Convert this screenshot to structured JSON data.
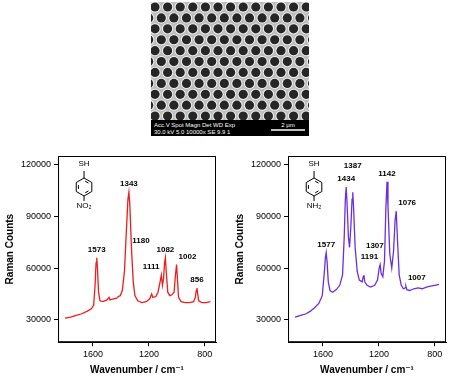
{
  "image": {
    "info_header": "Acc.V Spot Magn Det WD Exp",
    "info_values": "30.0 kV 5.0 10000x SE 9.9 1",
    "scale_bar": "2 μm"
  },
  "chart_data": [
    {
      "type": "line",
      "x_label": "Wavenumber / cm⁻¹",
      "y_label": "Raman Counts",
      "molecule": {
        "top": "SH",
        "bottom": "NO₂"
      },
      "color": "#ee1c1c",
      "grid": false,
      "xlim": [
        1850,
        720
      ],
      "xticks": [
        1600,
        1200,
        800
      ],
      "ylim": [
        17000,
        125000
      ],
      "yticks": [
        30000,
        60000,
        90000,
        120000
      ],
      "x": [
        1800,
        1760,
        1720,
        1680,
        1640,
        1610,
        1595,
        1585,
        1578,
        1573,
        1568,
        1560,
        1550,
        1530,
        1500,
        1485,
        1478,
        1460,
        1430,
        1418,
        1405,
        1390,
        1375,
        1362,
        1350,
        1343,
        1336,
        1325,
        1312,
        1300,
        1280,
        1250,
        1220,
        1195,
        1185,
        1180,
        1172,
        1150,
        1135,
        1120,
        1111,
        1103,
        1095,
        1088,
        1082,
        1076,
        1065,
        1050,
        1035,
        1020,
        1010,
        1002,
        996,
        988,
        970,
        940,
        910,
        880,
        868,
        861,
        856,
        851,
        844,
        820,
        790,
        760
      ],
      "values": [
        31000,
        31500,
        32500,
        33500,
        35000,
        36500,
        38500,
        50000,
        63000,
        66000,
        60000,
        46000,
        41000,
        40500,
        41500,
        43000,
        41500,
        42000,
        42500,
        43500,
        44000,
        47000,
        58000,
        80000,
        100000,
        104000,
        96000,
        72000,
        52000,
        44000,
        41000,
        40000,
        40500,
        42000,
        44000,
        45000,
        43000,
        43500,
        46000,
        52000,
        56000,
        50000,
        54000,
        63000,
        66000,
        58000,
        46000,
        44000,
        44500,
        46000,
        56000,
        62000,
        54000,
        43000,
        40500,
        40000,
        40000,
        40500,
        43000,
        47000,
        48500,
        45000,
        41000,
        40000,
        40000,
        40500
      ],
      "annotations": [
        {
          "x": 1573,
          "y": 66000,
          "text": "1573"
        },
        {
          "x": 1343,
          "y": 104000,
          "text": "1343"
        },
        {
          "x": 1180,
          "y": 45000,
          "text": "1180"
        },
        {
          "x": 1111,
          "y": 56000,
          "text": "1111"
        },
        {
          "x": 1082,
          "y": 66000,
          "text": "1082"
        },
        {
          "x": 1002,
          "y": 62000,
          "text": "1002"
        },
        {
          "x": 856,
          "y": 48500,
          "text": "856"
        }
      ]
    },
    {
      "type": "line",
      "x_label": "Wavenumber / cm⁻¹",
      "y_label": "Raman Counts",
      "molecule": {
        "top": "SH",
        "bottom": "NH₂"
      },
      "color": "#6a2ee0",
      "grid": false,
      "xlim": [
        1850,
        720
      ],
      "xticks": [
        1600,
        1200,
        800
      ],
      "ylim": [
        17000,
        125000
      ],
      "yticks": [
        30000,
        60000,
        90000,
        120000
      ],
      "x": [
        1800,
        1760,
        1720,
        1690,
        1660,
        1630,
        1605,
        1590,
        1583,
        1577,
        1571,
        1562,
        1550,
        1530,
        1505,
        1480,
        1460,
        1448,
        1440,
        1434,
        1428,
        1418,
        1410,
        1400,
        1392,
        1387,
        1381,
        1370,
        1355,
        1340,
        1320,
        1312,
        1307,
        1301,
        1285,
        1260,
        1230,
        1210,
        1198,
        1191,
        1184,
        1172,
        1160,
        1150,
        1142,
        1135,
        1122,
        1108,
        1095,
        1084,
        1076,
        1068,
        1055,
        1040,
        1025,
        1012,
        1007,
        1000,
        980,
        950,
        920,
        890,
        860,
        830,
        800,
        770
      ],
      "values": [
        31500,
        32500,
        33500,
        35000,
        37000,
        39500,
        44000,
        58000,
        66000,
        69000,
        64000,
        52000,
        47000,
        46000,
        47500,
        50000,
        56000,
        78000,
        100000,
        107000,
        98000,
        78000,
        72000,
        85000,
        100000,
        104000,
        95000,
        72000,
        58000,
        53000,
        52000,
        55000,
        56000,
        52000,
        50000,
        49000,
        50000,
        53000,
        60000,
        62000,
        57000,
        55000,
        64000,
        95000,
        110000,
        96000,
        68000,
        60000,
        70000,
        88000,
        93000,
        78000,
        56000,
        50000,
        48000,
        48500,
        49500,
        47500,
        47000,
        48000,
        48500,
        48000,
        49000,
        49500,
        50000,
        50500
      ],
      "annotations": [
        {
          "x": 1577,
          "y": 69000,
          "text": "1577"
        },
        {
          "x": 1434,
          "y": 107000,
          "text": "1434"
        },
        {
          "x": 1387,
          "y": 104000,
          "text": "1387"
        },
        {
          "x": 1307,
          "y": 56000,
          "text": "1307"
        },
        {
          "x": 1191,
          "y": 62000,
          "text": "1191"
        },
        {
          "x": 1142,
          "y": 110000,
          "text": "1142"
        },
        {
          "x": 1076,
          "y": 93000,
          "text": "1076"
        },
        {
          "x": 1007,
          "y": 49500,
          "text": "1007"
        }
      ]
    }
  ]
}
